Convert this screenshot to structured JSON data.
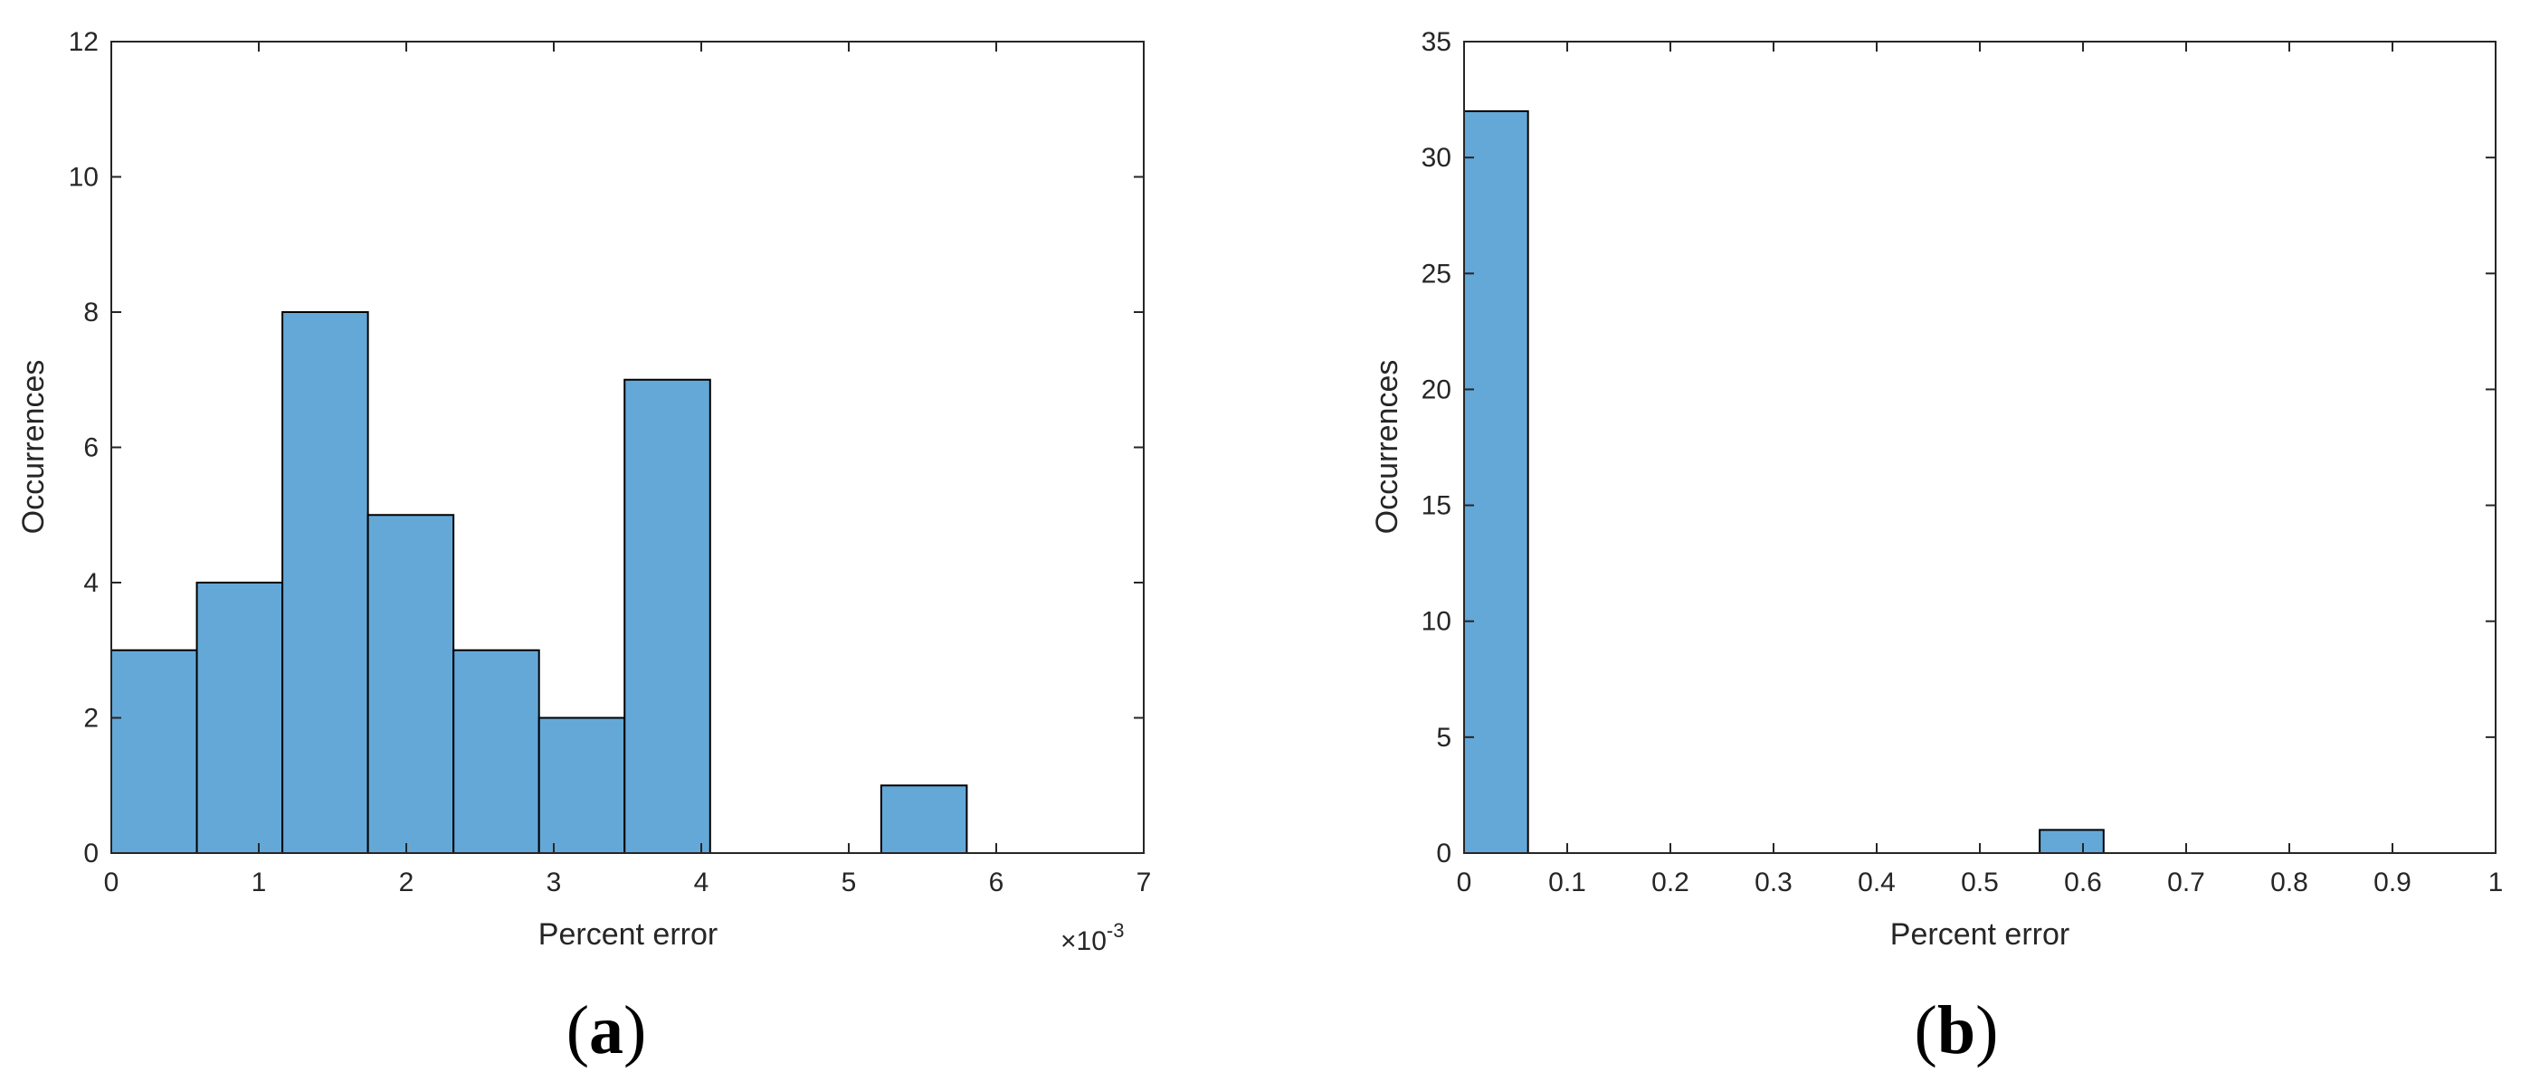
{
  "chart_data": [
    {
      "type": "bar",
      "panel_label": "a",
      "xlabel": "Percent error",
      "ylabel": "Occurrences",
      "x_exponent_label": "×10",
      "x_exponent": "-3",
      "xlim": [
        0,
        7
      ],
      "ylim": [
        0,
        12
      ],
      "xticks": [
        "0",
        "1",
        "2",
        "3",
        "4",
        "5",
        "6",
        "7"
      ],
      "yticks": [
        "0",
        "2",
        "4",
        "6",
        "8",
        "10",
        "12"
      ],
      "bin_width": 0.58,
      "bins": [
        {
          "start": 0.0,
          "count": 3
        },
        {
          "start": 0.58,
          "count": 4
        },
        {
          "start": 1.16,
          "count": 8
        },
        {
          "start": 1.74,
          "count": 5
        },
        {
          "start": 2.32,
          "count": 3
        },
        {
          "start": 2.9,
          "count": 2
        },
        {
          "start": 3.48,
          "count": 7
        },
        {
          "start": 4.06,
          "count": 0
        },
        {
          "start": 4.64,
          "count": 0
        },
        {
          "start": 5.22,
          "count": 1
        }
      ],
      "bar_color": "#64a8d8",
      "edge_color": "#000000",
      "grid": false
    },
    {
      "type": "bar",
      "panel_label": "b",
      "xlabel": "Percent error",
      "ylabel": "Occurrences",
      "xlim": [
        0,
        1
      ],
      "ylim": [
        0,
        35
      ],
      "xticks": [
        "0",
        "0.1",
        "0.2",
        "0.3",
        "0.4",
        "0.5",
        "0.6",
        "0.7",
        "0.8",
        "0.9",
        "1"
      ],
      "yticks": [
        "0",
        "5",
        "10",
        "15",
        "20",
        "25",
        "30",
        "35"
      ],
      "bin_width": 0.062,
      "bins": [
        {
          "start": 0.0,
          "count": 32
        },
        {
          "start": 0.558,
          "count": 1
        }
      ],
      "bar_color": "#64a8d8",
      "edge_color": "#000000",
      "grid": false
    }
  ]
}
